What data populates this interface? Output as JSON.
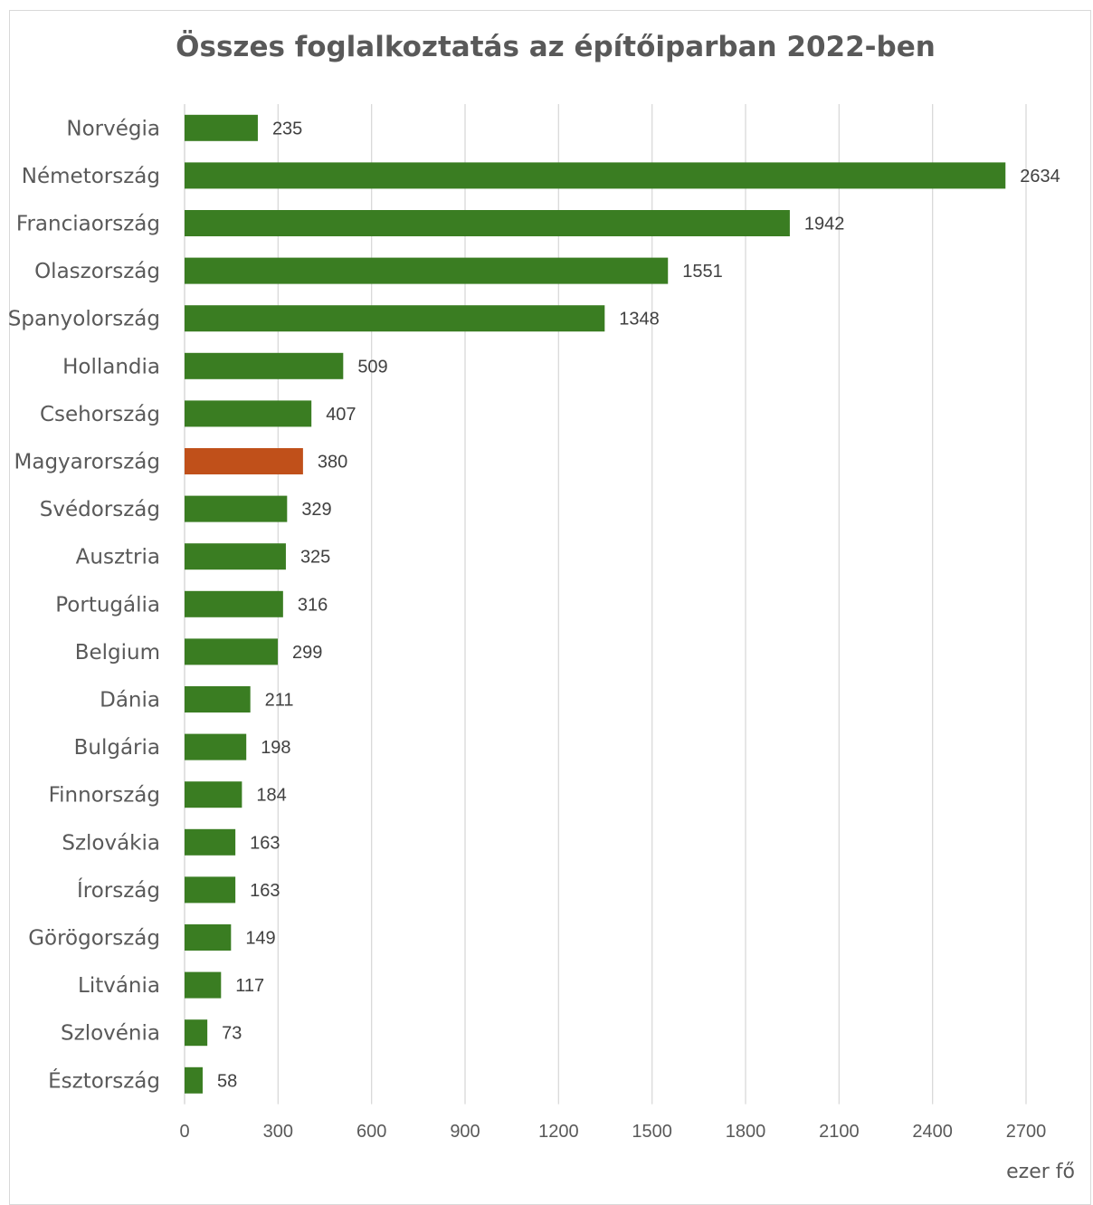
{
  "chart_data": {
    "type": "bar",
    "orientation": "horizontal",
    "title": "Összes foglalkoztatás az építőiparban 2022-ben",
    "xlabel": "ezer fő",
    "ylabel": "",
    "categories": [
      "Norvégia",
      "Németország",
      "Franciaország",
      "Olaszország",
      "Spanyolország",
      "Hollandia",
      "Csehország",
      "Magyarország",
      "Svédország",
      "Ausztria",
      "Portugália",
      "Belgium",
      "Dánia",
      "Bulgária",
      "Finnország",
      "Szlovákia",
      "Írország",
      "Görögország",
      "Litvánia",
      "Szlovénia",
      "Észtország"
    ],
    "values": [
      235,
      2634,
      1942,
      1551,
      1348,
      509,
      407,
      380,
      329,
      325,
      316,
      299,
      211,
      198,
      184,
      163,
      163,
      149,
      117,
      73,
      58
    ],
    "xlim": [
      0,
      2700
    ],
    "xticks": [
      0,
      300,
      600,
      900,
      1200,
      1500,
      1800,
      2100,
      2400,
      2700
    ],
    "grid": true,
    "legend": "none",
    "colors": {
      "default": "#3a7d22",
      "highlight": "#c0501a",
      "gridline": "#d9d9d9"
    },
    "highlight_category": "Magyarország"
  }
}
